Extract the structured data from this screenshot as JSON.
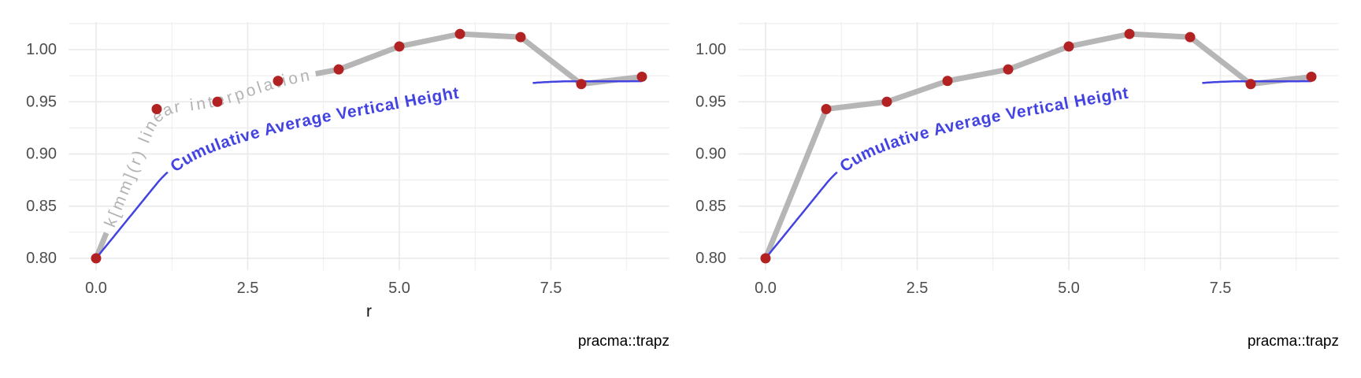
{
  "colors": {
    "background": "#ffffff",
    "grid": "#ebebeb",
    "gray_line": "#b6b6b6",
    "gray_label": "#b3b3b3",
    "blue": "#4343e1",
    "point": "#b22222",
    "tick_label": "#4d4d4d",
    "axis_title": "#111111",
    "caption": "#000000"
  },
  "chart_data": [
    {
      "type": "line",
      "panel": "left",
      "title": "",
      "x": [
        0,
        1,
        2,
        3,
        4,
        5,
        6,
        7,
        8,
        9
      ],
      "series": [
        {
          "name": "k[mm](r) linear interpolation",
          "values": [
            0.8,
            0.943,
            0.95,
            0.97,
            0.981,
            1.003,
            1.015,
            1.012,
            0.967,
            0.974
          ],
          "color": "#b6b6b6",
          "points": true,
          "point_color": "#b22222",
          "inline_label": true,
          "line_visible_segments": [
            [
              0,
              0.17
            ],
            [
              3.62,
              9
            ]
          ]
        },
        {
          "name": "Cumulative Average Vertical Height",
          "values": [
            0.8,
            0.872,
            0.909,
            0.926,
            0.938,
            0.949,
            0.959,
            0.967,
            0.97,
            0.97
          ],
          "color": "#4343e1",
          "points": false,
          "derived": "cumulative trapezoid average of first series",
          "inline_label": true,
          "line_visible_segments": [
            [
              0,
              1.18
            ],
            [
              7.2,
              9
            ]
          ]
        }
      ],
      "x_ticks": {
        "values": [
          0,
          2.5,
          5,
          7.5
        ],
        "labels": [
          "0.0",
          "2.5",
          "5.0",
          "7.5"
        ]
      },
      "y_ticks": {
        "values": [
          0.8,
          0.85,
          0.9,
          0.95,
          1.0
        ],
        "labels": [
          "0.80",
          "0.85",
          "0.90",
          "0.95",
          "1.00"
        ]
      },
      "xlim": [
        -0.45,
        9.45
      ],
      "ylim": [
        0.789,
        1.027
      ],
      "xlabel": "r",
      "ylabel": "",
      "grid": "major and minor, light gray, no panel border",
      "legend": "none",
      "caption": "pracma::trapz"
    },
    {
      "type": "line",
      "panel": "right",
      "title": "",
      "x": [
        0,
        1,
        2,
        3,
        4,
        5,
        6,
        7,
        8,
        9
      ],
      "series": [
        {
          "name": "k[mm](r) linear interpolation",
          "values": [
            0.8,
            0.943,
            0.95,
            0.97,
            0.981,
            1.003,
            1.015,
            1.012,
            0.967,
            0.974
          ],
          "color": "#b6b6b6",
          "points": true,
          "point_color": "#b22222",
          "inline_label": false,
          "line_visible_segments": [
            [
              0,
              9
            ]
          ]
        },
        {
          "name": "Cumulative Average Vertical Height",
          "values": [
            0.8,
            0.872,
            0.909,
            0.926,
            0.938,
            0.949,
            0.959,
            0.967,
            0.97,
            0.97
          ],
          "color": "#4343e1",
          "points": false,
          "derived": "cumulative trapezoid average of first series",
          "inline_label": true,
          "line_visible_segments": [
            [
              0,
              1.18
            ],
            [
              7.2,
              9
            ]
          ]
        }
      ],
      "x_ticks": {
        "values": [
          0,
          2.5,
          5,
          7.5
        ],
        "labels": [
          "0.0",
          "2.5",
          "5.0",
          "7.5"
        ]
      },
      "y_ticks": {
        "values": [
          0.8,
          0.85,
          0.9,
          0.95,
          1.0
        ],
        "labels": [
          "0.80",
          "0.85",
          "0.90",
          "0.95",
          "1.00"
        ]
      },
      "xlim": [
        -0.45,
        9.45
      ],
      "ylim": [
        0.789,
        1.027
      ],
      "xlabel": "",
      "ylabel": "",
      "grid": "major and minor, light gray, no panel border",
      "legend": "none",
      "caption": "pracma::trapz"
    }
  ]
}
